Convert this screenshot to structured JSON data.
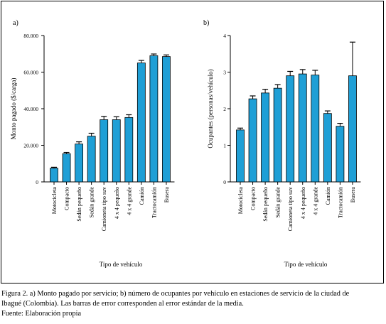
{
  "chart_data": [
    {
      "type": "bar",
      "panel_label": "a)",
      "title": "",
      "xlabel": "Tipo de vehículo",
      "ylabel": "Monto pagado ($/carga)",
      "ylim": [
        0,
        80000
      ],
      "yticks": [
        0,
        20000,
        40000,
        60000,
        80000
      ],
      "ytick_labels": [
        "0",
        "20.000",
        "40.000",
        "60.000",
        "80.000"
      ],
      "categories": [
        "Motocicleta",
        "Compacto",
        "Sedán pequeño",
        "Sedán grande",
        "Camioneta tipo suv",
        "4 x 4 pequeño",
        "4 x 4 grande",
        "Camión",
        "Tractocamión",
        "Busera"
      ],
      "values": [
        7500,
        15400,
        20700,
        25000,
        34000,
        34000,
        35200,
        65000,
        69000,
        68500
      ],
      "errors": [
        500,
        700,
        1200,
        1600,
        1800,
        1600,
        1500,
        1400,
        900,
        900
      ],
      "bar_color": "#1f9fd6",
      "grid": false
    },
    {
      "type": "bar",
      "panel_label": "b)",
      "title": "",
      "xlabel": "Tipo de vehículo",
      "ylabel": "Ocupantes (personas/vehículo)",
      "ylim": [
        0,
        4
      ],
      "yticks": [
        0,
        1,
        2,
        3,
        4
      ],
      "ytick_labels": [
        "0",
        "1",
        "2",
        "3",
        "4"
      ],
      "categories": [
        "Motocicleta",
        "Compacto",
        "Sedán pequeño",
        "Sedán grande",
        "Camioneta tipo suv",
        "4 x 4 pequeño",
        "4 x 4 grande",
        "Camión",
        "Tractocamión",
        "Busera"
      ],
      "values": [
        1.42,
        2.27,
        2.43,
        2.56,
        2.9,
        2.95,
        2.92,
        1.87,
        1.52,
        2.9
      ],
      "errors": [
        0.05,
        0.08,
        0.1,
        0.1,
        0.12,
        0.12,
        0.13,
        0.07,
        0.08,
        0.92
      ],
      "bar_color": "#1f9fd6",
      "grid": false
    }
  ],
  "caption": {
    "line1": "Figura 2. a) Monto pagado por servicio; b) número de ocupantes por vehículo en estaciones de servicio de la ciudad de",
    "line2": "Ibagué (Colombia). Las barras de error corresponden al error estándar de la media.",
    "line3": "Fuente: Elaboración propia"
  }
}
